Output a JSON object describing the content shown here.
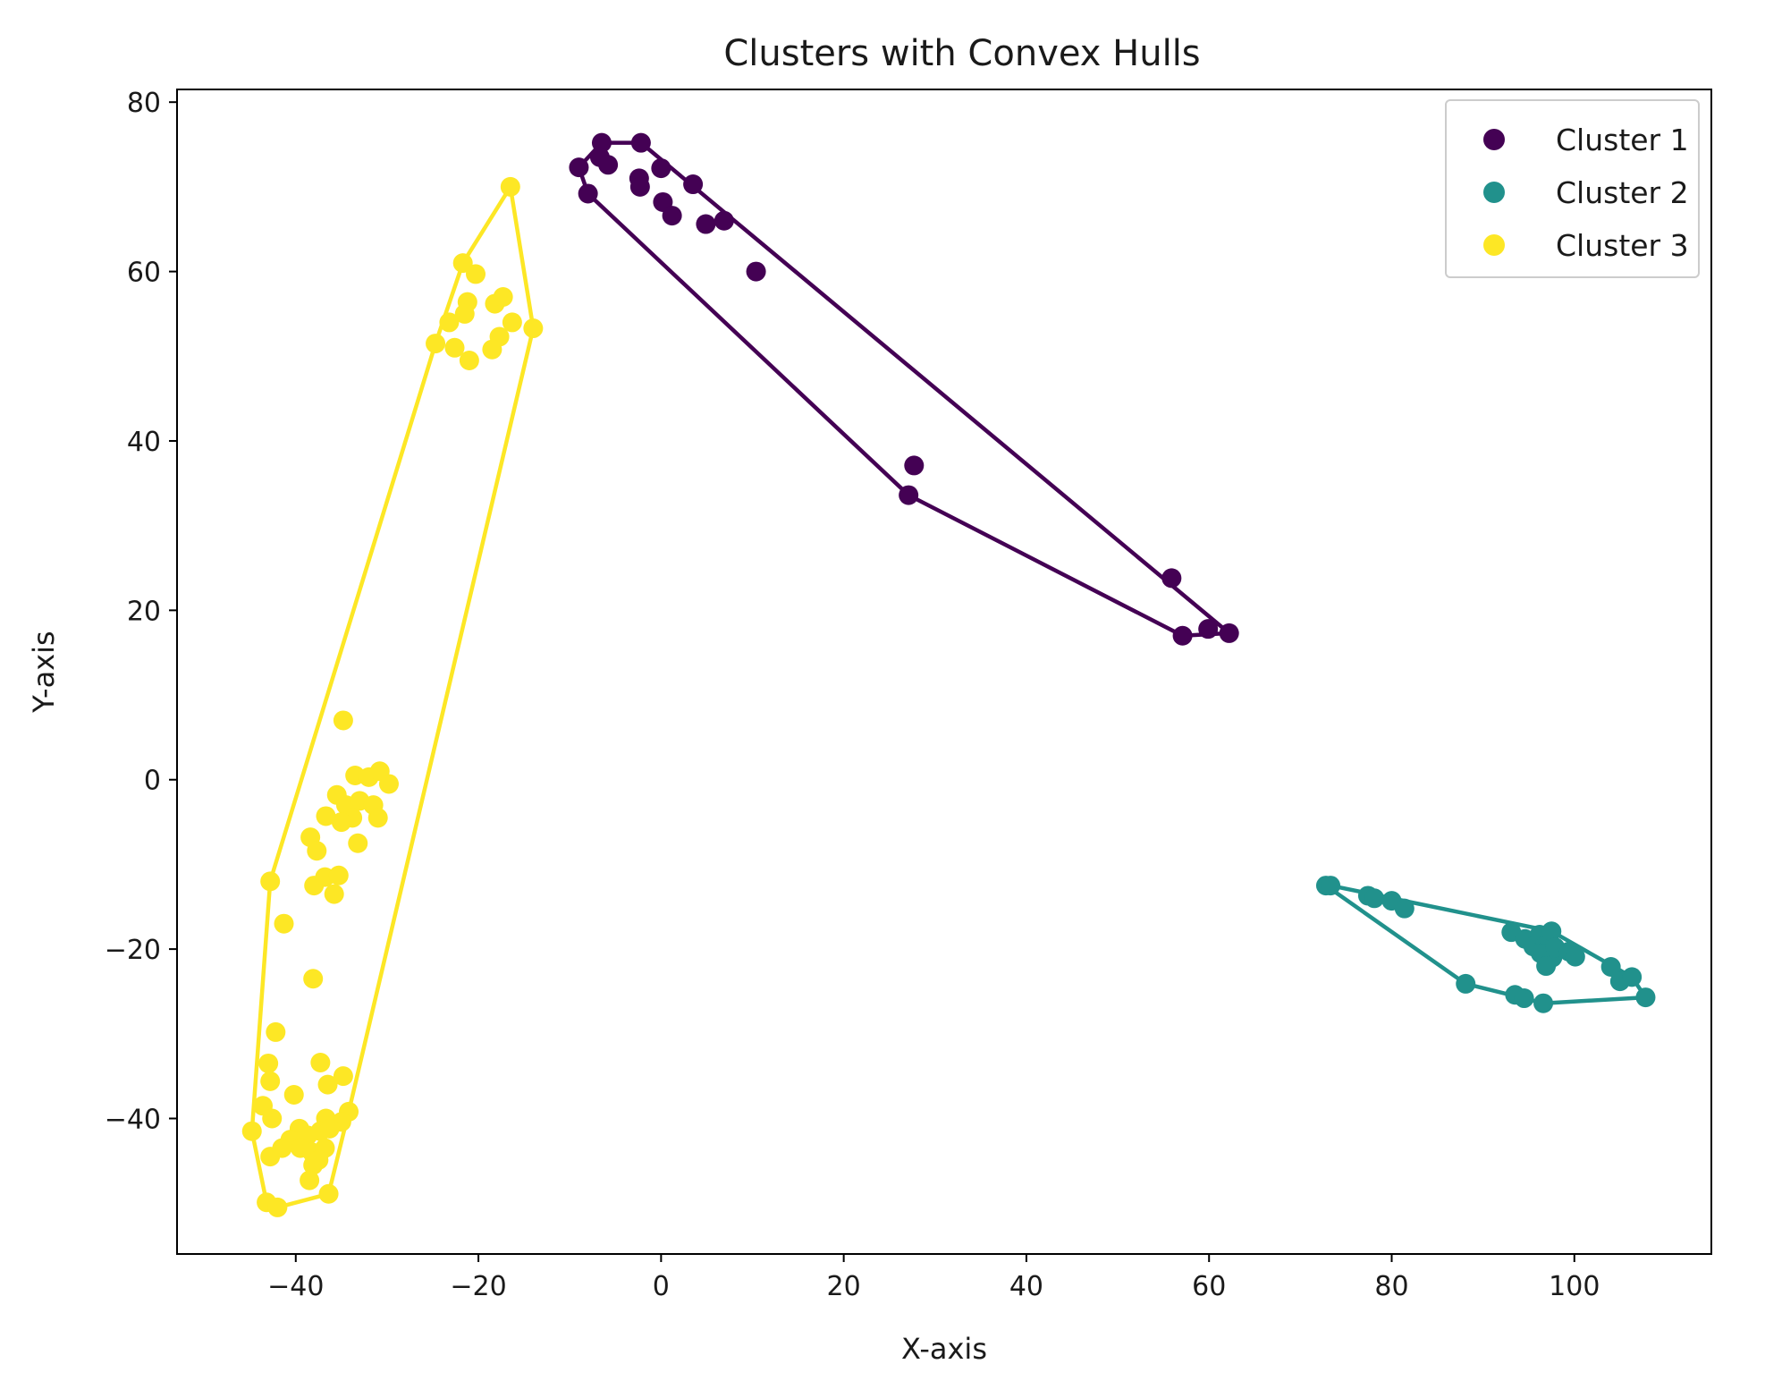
{
  "chart_data": {
    "type": "scatter",
    "title": "Clusters with Convex Hulls",
    "xlabel": "X-axis",
    "ylabel": "Y-axis",
    "xlim": [
      -53,
      115
    ],
    "ylim": [
      -56,
      81.5
    ],
    "xticks": [
      -40,
      -20,
      0,
      20,
      40,
      60,
      80,
      100
    ],
    "yticks": [
      -40,
      -20,
      0,
      20,
      40,
      60,
      80
    ],
    "grid": false,
    "legend_position": "top-right",
    "series": [
      {
        "name": "Cluster 1",
        "color": "#440154",
        "points": [
          [
            -9,
            72.3
          ],
          [
            -6.5,
            75.2
          ],
          [
            -6.7,
            73.5
          ],
          [
            -5.8,
            72.6
          ],
          [
            -2.2,
            75.2
          ],
          [
            -2.4,
            71
          ],
          [
            -2.3,
            70
          ],
          [
            -8,
            69.2
          ],
          [
            0,
            72.2
          ],
          [
            0.2,
            68.2
          ],
          [
            1.2,
            66.6
          ],
          [
            3.5,
            70.3
          ],
          [
            4.9,
            65.6
          ],
          [
            6.9,
            66
          ],
          [
            10.4,
            60
          ],
          [
            27.7,
            37.1
          ],
          [
            27.1,
            33.6
          ],
          [
            55.9,
            23.8
          ],
          [
            57.1,
            17
          ],
          [
            59.9,
            17.8
          ],
          [
            62.2,
            17.3
          ]
        ],
        "hull": [
          [
            -9,
            72.3
          ],
          [
            -6.5,
            75.2
          ],
          [
            -2.2,
            75.2
          ],
          [
            62.2,
            17.3
          ],
          [
            57.1,
            17
          ],
          [
            27.1,
            33.6
          ],
          [
            -8,
            69.2
          ]
        ]
      },
      {
        "name": "Cluster 2",
        "color": "#21918c",
        "points": [
          [
            72.8,
            -12.5
          ],
          [
            73.3,
            -12.5
          ],
          [
            77.4,
            -13.7
          ],
          [
            78.1,
            -14
          ],
          [
            80,
            -14.3
          ],
          [
            81.4,
            -15.2
          ],
          [
            88.1,
            -24.1
          ],
          [
            93.1,
            -18
          ],
          [
            94.6,
            -18.8
          ],
          [
            95.5,
            -19.7
          ],
          [
            96.2,
            -18.3
          ],
          [
            96.8,
            -19.6
          ],
          [
            96.3,
            -20.5
          ],
          [
            97.6,
            -21
          ],
          [
            96.9,
            -22
          ],
          [
            97.5,
            -17.9
          ],
          [
            97.9,
            -19.8
          ],
          [
            99.4,
            -20.3
          ],
          [
            100.1,
            -20.9
          ],
          [
            93.5,
            -25.4
          ],
          [
            94.5,
            -25.8
          ],
          [
            96.6,
            -26.4
          ],
          [
            104,
            -22.1
          ],
          [
            105,
            -23.8
          ],
          [
            106.3,
            -23.3
          ],
          [
            107.8,
            -25.7
          ]
        ],
        "hull": [
          [
            72.8,
            -12.5
          ],
          [
            73.3,
            -12.5
          ],
          [
            97.5,
            -17.9
          ],
          [
            106.3,
            -23.3
          ],
          [
            107.8,
            -25.7
          ],
          [
            96.6,
            -26.4
          ],
          [
            94.5,
            -25.8
          ],
          [
            88.1,
            -24.1
          ]
        ]
      },
      {
        "name": "Cluster 3",
        "color": "#fde725",
        "points": [
          [
            -16.5,
            70
          ],
          [
            -21.7,
            61
          ],
          [
            -20.3,
            59.7
          ],
          [
            -21.2,
            56.4
          ],
          [
            -18.2,
            56.2
          ],
          [
            -17.3,
            57
          ],
          [
            -23.2,
            54
          ],
          [
            -21.5,
            55
          ],
          [
            -16.3,
            54
          ],
          [
            -14,
            53.3
          ],
          [
            -17.7,
            52.3
          ],
          [
            -18.5,
            50.8
          ],
          [
            -24.7,
            51.5
          ],
          [
            -22.6,
            51
          ],
          [
            -21,
            49.5
          ],
          [
            -34.8,
            7
          ],
          [
            -33.5,
            0.5
          ],
          [
            -32,
            0.3
          ],
          [
            -30.8,
            1
          ],
          [
            -29.8,
            -0.5
          ],
          [
            -35.5,
            -1.8
          ],
          [
            -34.5,
            -3
          ],
          [
            -33,
            -2.5
          ],
          [
            -31.5,
            -3
          ],
          [
            -33.8,
            -4.5
          ],
          [
            -35,
            -5
          ],
          [
            -36.7,
            -4.3
          ],
          [
            -31,
            -4.5
          ],
          [
            -33.2,
            -7.5
          ],
          [
            -38.4,
            -6.8
          ],
          [
            -37.7,
            -8.4
          ],
          [
            -36.8,
            -11.5
          ],
          [
            -38,
            -12.5
          ],
          [
            -35.3,
            -11.3
          ],
          [
            -35.8,
            -13.5
          ],
          [
            -42.8,
            -12
          ],
          [
            -41.3,
            -17
          ],
          [
            -38.1,
            -23.5
          ],
          [
            -42.2,
            -29.8
          ],
          [
            -43,
            -33.5
          ],
          [
            -37.3,
            -33.4
          ],
          [
            -36.5,
            -36
          ],
          [
            -34.8,
            -35
          ],
          [
            -42.8,
            -35.6
          ],
          [
            -40.2,
            -37.2
          ],
          [
            -43.6,
            -38.5
          ],
          [
            -42.6,
            -40
          ],
          [
            -36.7,
            -40
          ],
          [
            -34.2,
            -39.2
          ],
          [
            -35,
            -40.4
          ],
          [
            -39.6,
            -41.2
          ],
          [
            -38.7,
            -42
          ],
          [
            -37.3,
            -41.5
          ],
          [
            -36.3,
            -41.2
          ],
          [
            -40.6,
            -42.5
          ],
          [
            -39.5,
            -43.5
          ],
          [
            -38.2,
            -44
          ],
          [
            -36.8,
            -43.5
          ],
          [
            -44.8,
            -41.5
          ],
          [
            -42.8,
            -44.5
          ],
          [
            -41.5,
            -43.5
          ],
          [
            -38.1,
            -45.5
          ],
          [
            -37.5,
            -44.9
          ],
          [
            -38.5,
            -47.3
          ],
          [
            -36.4,
            -48.9
          ],
          [
            -43.2,
            -49.9
          ],
          [
            -42,
            -50.5
          ]
        ],
        "hull": [
          [
            -16.5,
            70
          ],
          [
            -14,
            53.3
          ],
          [
            -34.2,
            -39.2
          ],
          [
            -36.4,
            -48.9
          ],
          [
            -42,
            -50.5
          ],
          [
            -43.2,
            -49.9
          ],
          [
            -44.8,
            -41.5
          ],
          [
            -42.8,
            -12
          ],
          [
            -24.7,
            51.5
          ],
          [
            -21.7,
            61
          ]
        ]
      }
    ]
  }
}
